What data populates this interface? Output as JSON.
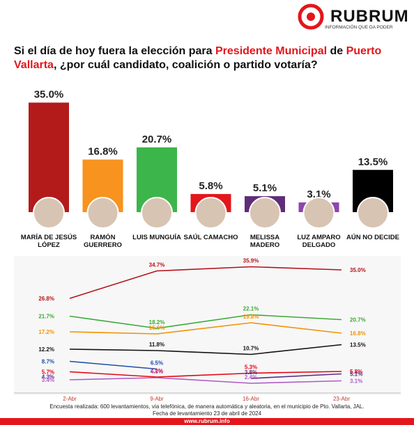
{
  "header": {
    "brand": "RUBRUM",
    "tagline": "INFORMACIÓN QUE DA PODER",
    "title": [
      "Si el día de hoy fuera la elección para ",
      "Presidente Municipal",
      " de ",
      "Puerto Vallarta",
      ", ¿por cuál candidato, coalición o partido votaría?"
    ]
  },
  "chart_data": [
    {
      "type": "bar",
      "categories": [
        "MARÍA DE JESÚS LÓPEZ",
        "RAMÓN GUERRERO",
        "LUIS MUNGUÍA",
        "SAÚL CAMACHO",
        "MELISSA MADERO",
        "LUZ AMPARO DELGADO",
        "AÚN NO DECIDE"
      ],
      "values": [
        35.0,
        16.8,
        20.7,
        5.8,
        5.1,
        3.1,
        13.5
      ],
      "value_labels": [
        "35.0%",
        "16.8%",
        "20.7%",
        "5.8%",
        "5.1%",
        "3.1%",
        "13.5%"
      ],
      "colors": [
        "#b31b1b",
        "#f7931e",
        "#3cb54a",
        "#e3161b",
        "#5e2d79",
        "#8e44ad",
        "#000000"
      ]
    },
    {
      "type": "line",
      "x": [
        "2-Abr",
        "9-Abr",
        "16-Abr",
        "23-Abr"
      ],
      "series": [
        {
          "color": "#b5121b",
          "values": [
            26.8,
            34.7,
            35.9,
            35.0
          ],
          "value_labels": [
            "26.8%",
            "34.7%",
            "35.9%",
            "35.0%"
          ]
        },
        {
          "color": "#3aaa35",
          "values": [
            21.7,
            18.2,
            22.1,
            20.7
          ],
          "value_labels": [
            "21.7%",
            "18.2%",
            "22.1%",
            "20.7%"
          ]
        },
        {
          "color": "#f39200",
          "values": [
            17.2,
            16.6,
            19.8,
            16.8
          ],
          "value_labels": [
            "17.2%",
            "16.6%",
            "19.8%",
            "16.8%"
          ]
        },
        {
          "color": "#111111",
          "values": [
            12.2,
            11.8,
            10.7,
            13.5
          ],
          "value_labels": [
            "12.2%",
            "11.8%",
            "10.7%",
            "13.5%"
          ]
        },
        {
          "color": "#1f4fa8",
          "values": [
            8.7,
            6.5,
            null,
            null
          ],
          "value_labels": [
            "8.7%",
            "6.5%",
            null,
            null
          ]
        },
        {
          "color": "#e30613",
          "values": [
            5.7,
            4.2,
            5.3,
            5.8
          ],
          "value_labels": [
            "5.7%",
            "4.2%",
            "5.3%",
            "5.8%"
          ]
        },
        {
          "color": "#5b2a86",
          "values": [
            4.3,
            null,
            3.8,
            5.1
          ],
          "value_labels": [
            "4.3%",
            null,
            "3.8%",
            "5.1%"
          ]
        },
        {
          "color": "#b05cc6",
          "values": [
            3.4,
            4.0,
            2.4,
            3.1
          ],
          "value_labels": [
            "3.4%",
            "4.0%",
            "2.4%",
            "3.1%"
          ]
        }
      ]
    }
  ],
  "footer": {
    "note": "Encuesta realizada: 600 levantamientos, vía telefónica, de manera automática y aleatoria, en el municipio de Pto. Vallarta, JAL.",
    "date": "Fecha de levantamiento 23 de abril de 2024",
    "url": "www.rubrum.info"
  }
}
